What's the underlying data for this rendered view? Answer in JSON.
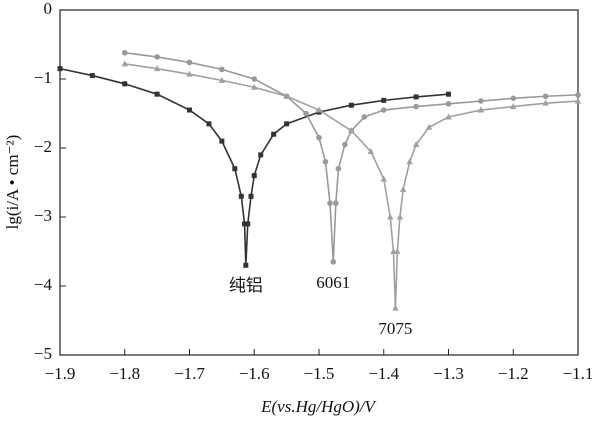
{
  "chart_data": {
    "type": "line",
    "xlabel": "E(vs.Hg/HgO)/V",
    "ylabel": "lg(i/A • cm⁻²)",
    "xlim": [
      -1.9,
      -1.1
    ],
    "ylim": [
      -5,
      0
    ],
    "xticks": [
      {
        "value": -1.9,
        "label": "−1.9"
      },
      {
        "value": -1.8,
        "label": "−1.8"
      },
      {
        "value": -1.7,
        "label": "−1.7"
      },
      {
        "value": -1.6,
        "label": "−1.6"
      },
      {
        "value": -1.5,
        "label": "−1.5"
      },
      {
        "value": -1.4,
        "label": "−1.4"
      },
      {
        "value": -1.3,
        "label": "−1.3"
      },
      {
        "value": -1.2,
        "label": "−1.2"
      },
      {
        "value": -1.1,
        "label": "−1.1"
      }
    ],
    "yticks": [
      0,
      {
        "value": -1,
        "label": "−1"
      },
      {
        "value": -2,
        "label": "−2"
      },
      {
        "value": -3,
        "label": "−3"
      },
      {
        "value": -4,
        "label": "−4"
      },
      {
        "value": -5,
        "label": "−5"
      }
    ],
    "series": [
      {
        "name": "纯铝",
        "color": "#333333",
        "marker": "square",
        "x": [
          -1.9,
          -1.85,
          -1.8,
          -1.75,
          -1.7,
          -1.67,
          -1.65,
          -1.63,
          -1.62,
          -1.615,
          -1.613,
          -1.61,
          -1.605,
          -1.6,
          -1.59,
          -1.57,
          -1.55,
          -1.5,
          -1.45,
          -1.4,
          -1.35,
          -1.3
        ],
        "values": [
          -0.85,
          -0.95,
          -1.07,
          -1.22,
          -1.45,
          -1.65,
          -1.9,
          -2.3,
          -2.7,
          -3.1,
          -3.7,
          -3.1,
          -2.7,
          -2.4,
          -2.1,
          -1.8,
          -1.65,
          -1.48,
          -1.38,
          -1.31,
          -1.26,
          -1.22
        ]
      },
      {
        "name": "6061",
        "color": "#999999",
        "marker": "circle",
        "x": [
          -1.8,
          -1.75,
          -1.7,
          -1.65,
          -1.6,
          -1.55,
          -1.52,
          -1.5,
          -1.49,
          -1.483,
          -1.478,
          -1.474,
          -1.47,
          -1.46,
          -1.45,
          -1.43,
          -1.4,
          -1.35,
          -1.3,
          -1.25,
          -1.2,
          -1.15,
          -1.1
        ],
        "values": [
          -0.62,
          -0.68,
          -0.76,
          -0.86,
          -1.0,
          -1.25,
          -1.5,
          -1.85,
          -2.2,
          -2.8,
          -3.65,
          -2.8,
          -2.3,
          -1.95,
          -1.75,
          -1.55,
          -1.45,
          -1.4,
          -1.36,
          -1.32,
          -1.28,
          -1.25,
          -1.23
        ]
      },
      {
        "name": "7075",
        "color": "#a0a0a0",
        "marker": "triangle",
        "x": [
          -1.8,
          -1.75,
          -1.7,
          -1.65,
          -1.6,
          -1.55,
          -1.5,
          -1.45,
          -1.42,
          -1.4,
          -1.39,
          -1.385,
          -1.382,
          -1.379,
          -1.375,
          -1.37,
          -1.36,
          -1.35,
          -1.33,
          -1.3,
          -1.25,
          -1.2,
          -1.15,
          -1.1
        ],
        "values": [
          -0.78,
          -0.85,
          -0.93,
          -1.02,
          -1.12,
          -1.25,
          -1.45,
          -1.75,
          -2.05,
          -2.45,
          -3.0,
          -3.5,
          -4.32,
          -3.5,
          -3.0,
          -2.6,
          -2.2,
          -1.95,
          -1.7,
          -1.55,
          -1.45,
          -1.4,
          -1.35,
          -1.32
        ]
      }
    ]
  }
}
